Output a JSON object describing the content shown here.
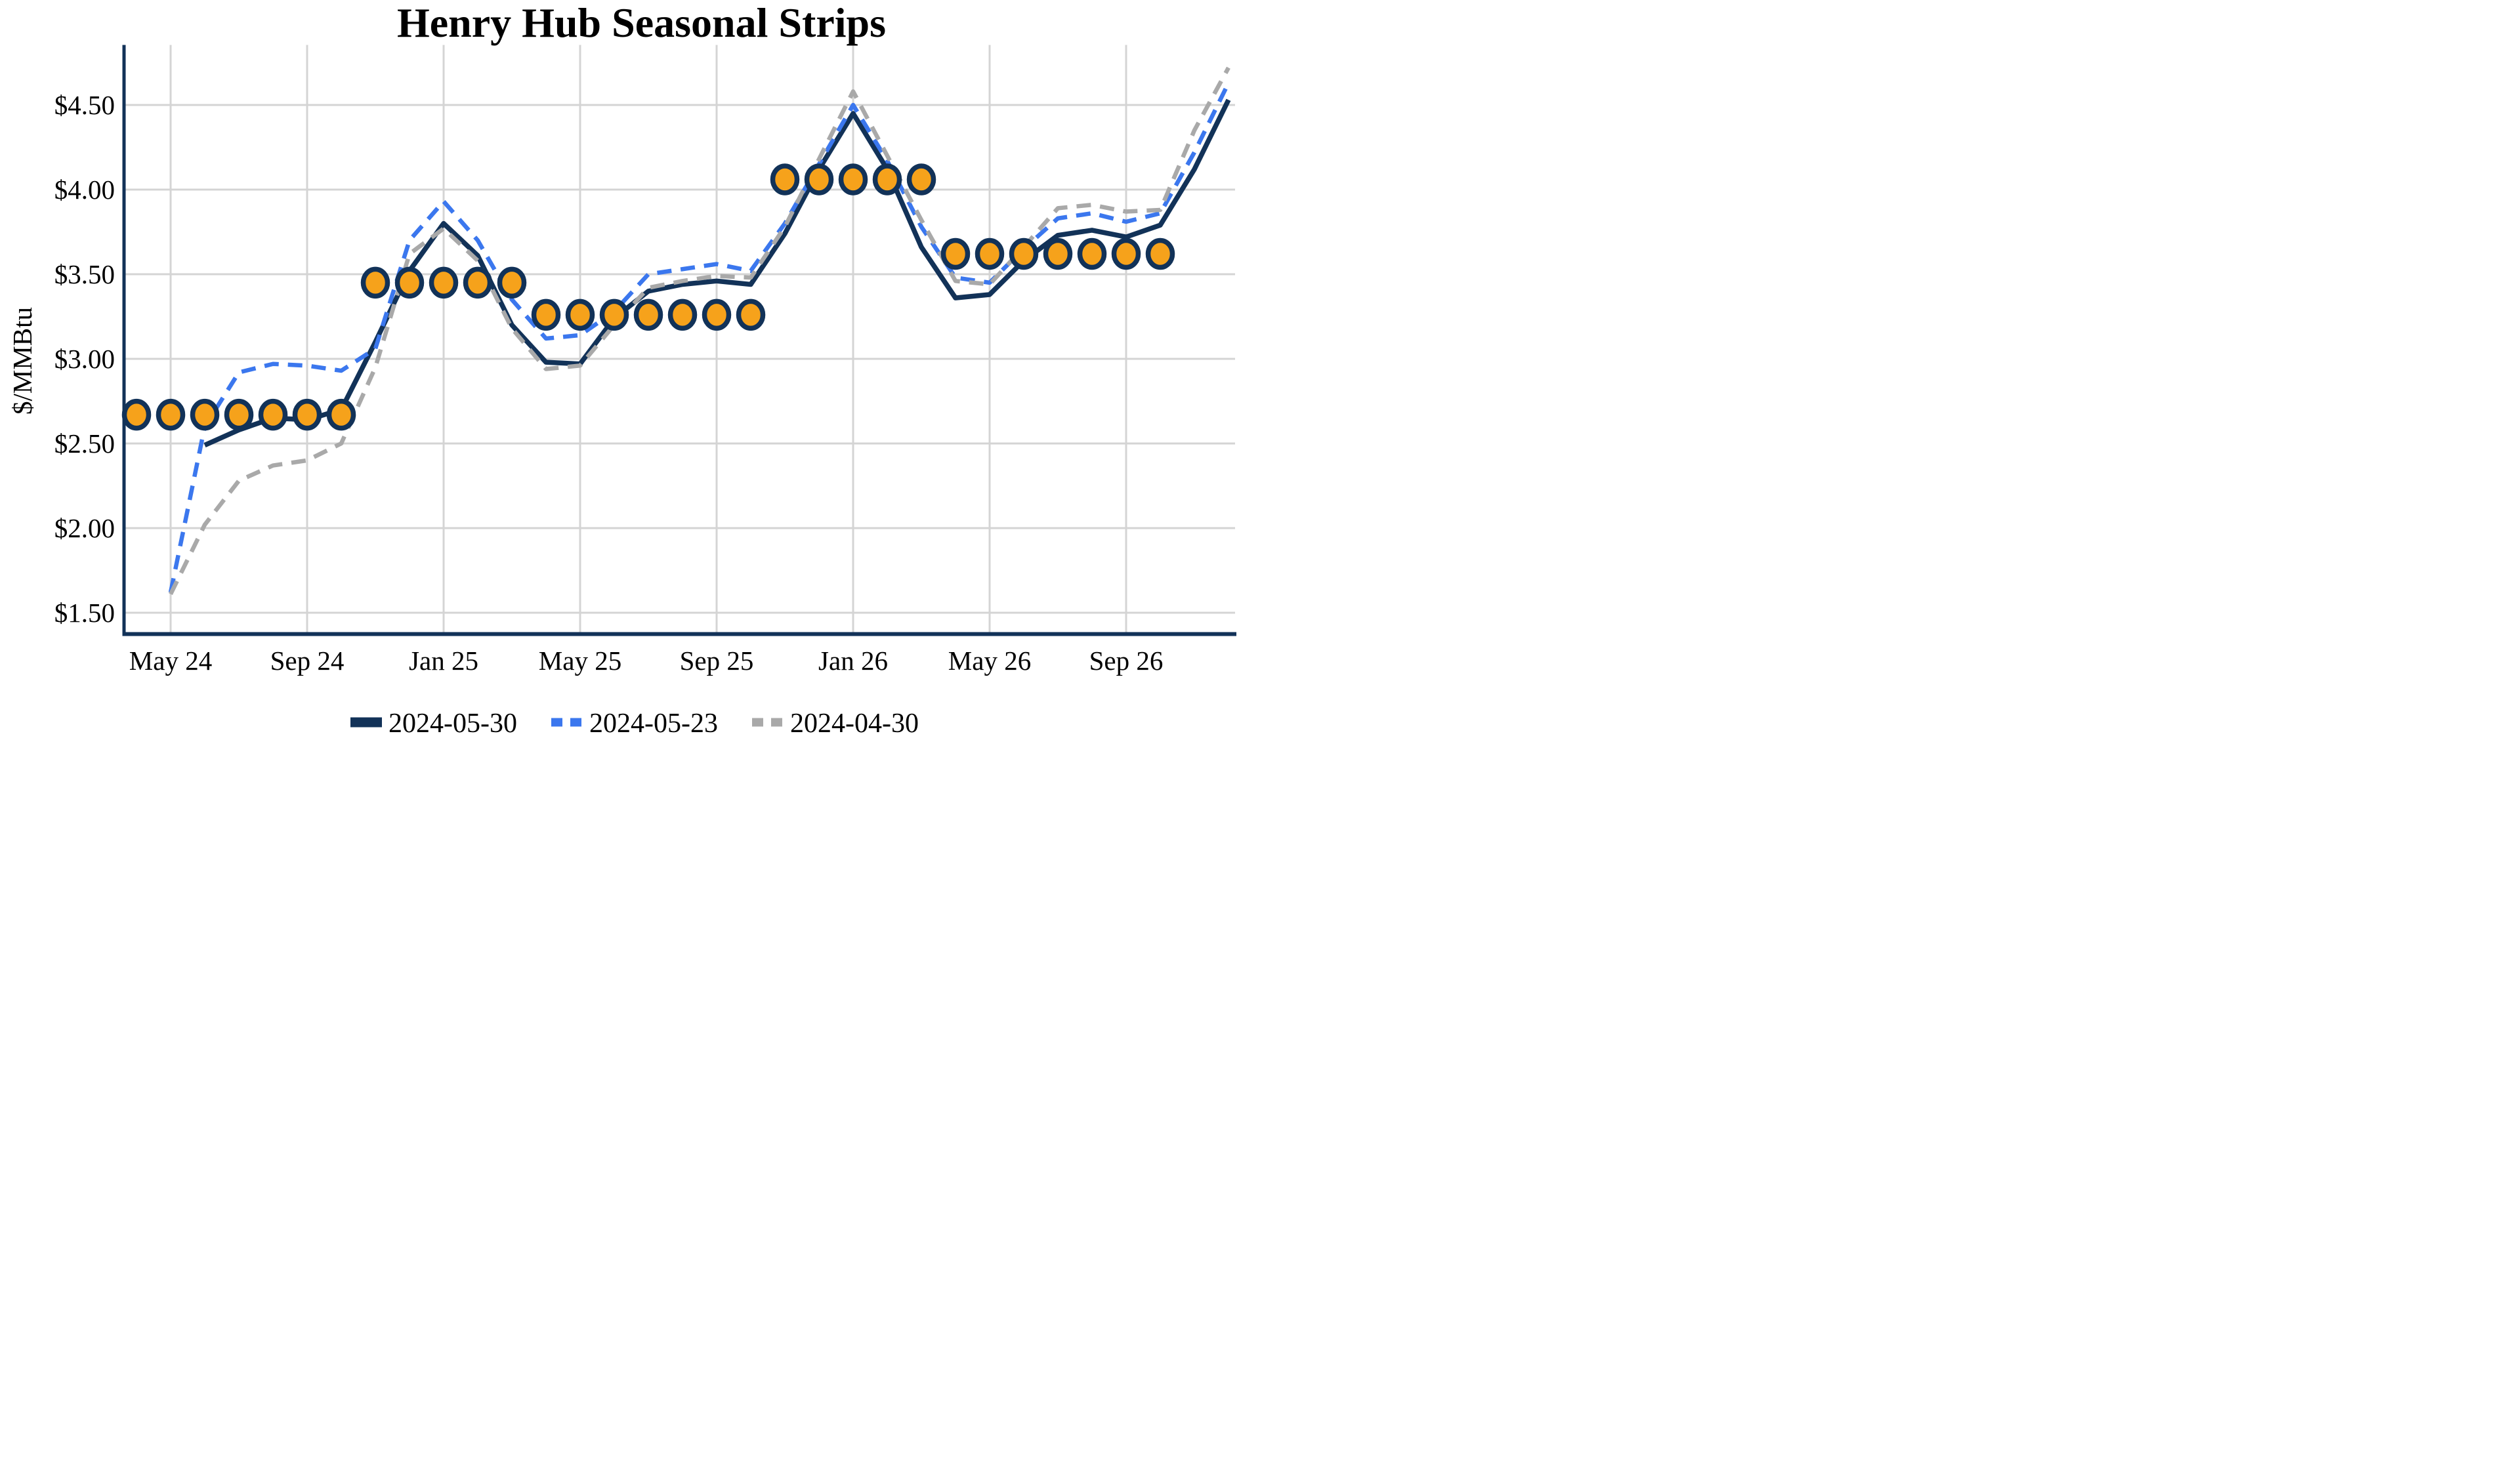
{
  "title": "Henry Hub Seasonal Strips",
  "colors": {
    "navy": "#123258",
    "blue": "#3b77ee",
    "gray": "#a9a9a9",
    "orange": "#f6a21b",
    "gridline": "#d4d4d4",
    "background": "#ffffff"
  },
  "chart_data": {
    "type": "line",
    "title": "Henry Hub Seasonal Strips",
    "xlabel": "",
    "ylabel": "$/MMBtu",
    "grid": "on",
    "legend_position": "bottom-center",
    "months": [
      "Apr 24",
      "May 24",
      "Jun 24",
      "Jul 24",
      "Aug 24",
      "Sep 24",
      "Oct 24",
      "Nov 24",
      "Dec 24",
      "Jan 25",
      "Feb 25",
      "Mar 25",
      "Apr 25",
      "May 25",
      "Jun 25",
      "Jul 25",
      "Aug 25",
      "Sep 25",
      "Oct 25",
      "Nov 25",
      "Dec 25",
      "Jan 26",
      "Feb 26",
      "Mar 26",
      "Apr 26",
      "May 26",
      "Jun 26",
      "Jul 26",
      "Aug 26",
      "Sep 26",
      "Oct 26",
      "Nov 26",
      "Dec 26"
    ],
    "x_gridline_indices": [
      1,
      5,
      9,
      13,
      17,
      21,
      25,
      29
    ],
    "x_tick_labels": [
      "May 24",
      "Sep 24",
      "Jan 25",
      "May 25",
      "Sep 25",
      "Jan 26",
      "May 26",
      "Sep 26"
    ],
    "y_ticks": [
      1.5,
      2.0,
      2.5,
      3.0,
      3.5,
      4.0,
      4.5
    ],
    "y_tick_labels": [
      "$1.50",
      "$2.00",
      "$2.50",
      "$3.00",
      "$3.50",
      "$4.00",
      "$4.50"
    ],
    "ylim": [
      1.37,
      4.86
    ],
    "series": [
      {
        "name": "2024-05-30",
        "color": "#123258",
        "style": "solid",
        "start_index": 2,
        "values": [
          2.49,
          2.58,
          2.65,
          2.64,
          2.7,
          3.1,
          3.52,
          3.8,
          3.61,
          3.2,
          2.98,
          2.97,
          3.24,
          3.4,
          3.44,
          3.46,
          3.44,
          3.74,
          4.12,
          4.45,
          4.12,
          3.66,
          3.36,
          3.38,
          3.58,
          3.73,
          3.76,
          3.72,
          3.79,
          4.12,
          4.53
        ]
      },
      {
        "name": "2024-05-23",
        "color": "#3b77ee",
        "style": "dashed",
        "start_index": 1,
        "values": [
          1.62,
          2.6,
          2.92,
          2.97,
          2.96,
          2.93,
          3.06,
          3.7,
          3.93,
          3.7,
          3.35,
          3.12,
          3.14,
          3.28,
          3.5,
          3.53,
          3.56,
          3.52,
          3.8,
          4.15,
          4.5,
          4.17,
          3.78,
          3.48,
          3.45,
          3.65,
          3.83,
          3.86,
          3.81,
          3.86,
          4.22,
          4.63
        ]
      },
      {
        "name": "2024-04-30",
        "color": "#a9a9a9",
        "style": "dashed",
        "start_index": 1,
        "values": [
          1.61,
          2.02,
          2.28,
          2.37,
          2.4,
          2.5,
          2.95,
          3.62,
          3.77,
          3.58,
          3.18,
          2.94,
          2.96,
          3.2,
          3.42,
          3.46,
          3.49,
          3.48,
          3.78,
          4.18,
          4.58,
          4.2,
          3.82,
          3.46,
          3.44,
          3.66,
          3.89,
          3.91,
          3.87,
          3.88,
          4.35,
          4.72
        ]
      }
    ],
    "strip_markers": {
      "color": "#f6a21b",
      "outline": "#123258",
      "groups": [
        {
          "start_index": 0,
          "count": 7,
          "value": 2.67
        },
        {
          "start_index": 7,
          "count": 5,
          "value": 3.45
        },
        {
          "start_index": 12,
          "count": 7,
          "value": 3.26
        },
        {
          "start_index": 19,
          "count": 5,
          "value": 4.06
        },
        {
          "start_index": 24,
          "count": 7,
          "value": 3.62
        }
      ]
    }
  }
}
